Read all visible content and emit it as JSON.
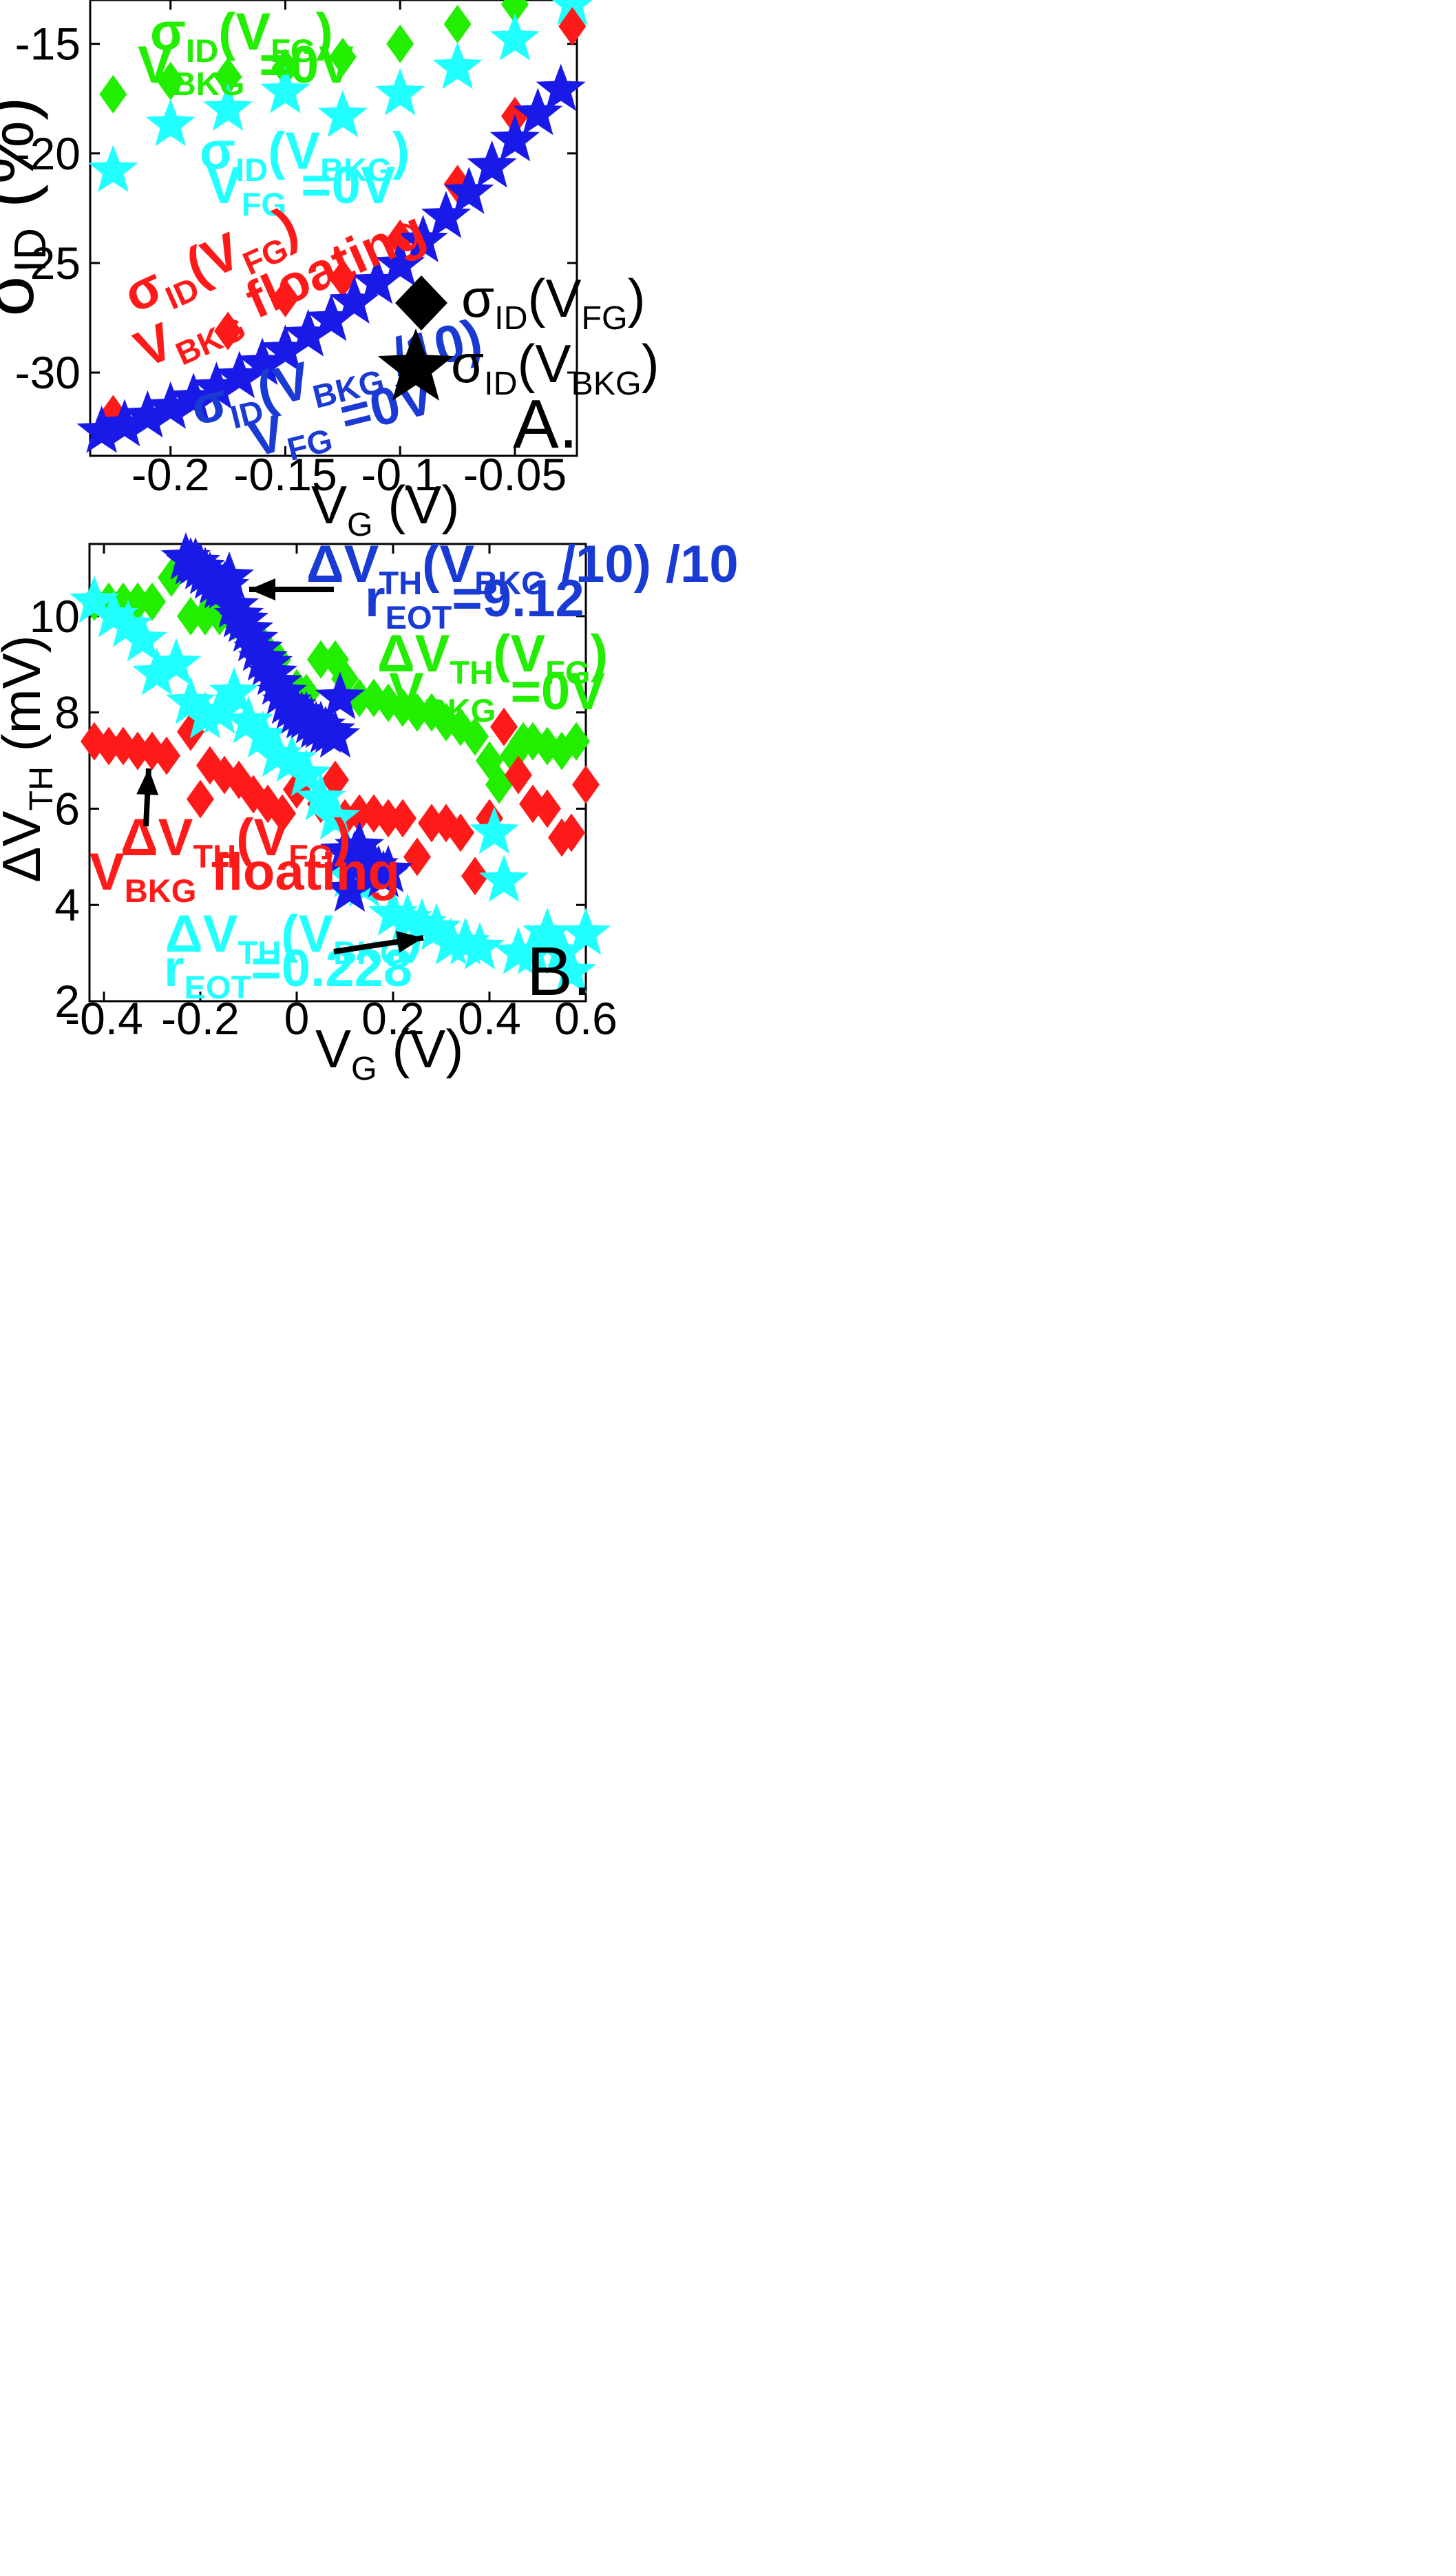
{
  "colors": {
    "green": "#22ee00",
    "cyan": "#22ffff",
    "blue": "#1a1ae8",
    "red": "#ff1a1a",
    "black": "#000000",
    "darkblue_text": "#1a3ad4"
  },
  "chart_data": [
    {
      "id": "A",
      "type": "scatter",
      "panel_label": "A.",
      "xlabel": {
        "main": "V",
        "sub": "G",
        "tail": " (V)"
      },
      "ylabel": {
        "main": "σ",
        "sub": "ID",
        "tail": " (%)"
      },
      "xlim": [
        -0.235,
        -0.023
      ],
      "ylim": [
        -33.8,
        -13.0
      ],
      "xticks": [
        -0.2,
        -0.15,
        -0.1,
        -0.05
      ],
      "xtick_labels": [
        "-0.2",
        "-0.15",
        "-0.1",
        "-0.05"
      ],
      "yticks": [
        -15,
        -20,
        -25,
        -30
      ],
      "ytick_labels": [
        "-15",
        "-20",
        "-25",
        "-30"
      ],
      "series": [
        {
          "name": "σID(VFG) VBKG=0V",
          "marker": "diamond",
          "color": "#22ee00",
          "x": [
            -0.225,
            -0.2,
            -0.175,
            -0.15,
            -0.125,
            -0.1,
            -0.075,
            -0.05
          ],
          "y": [
            -17.3,
            -16.7,
            -16.5,
            -16.1,
            -15.6,
            -15.0,
            -14.1,
            -13.2
          ]
        },
        {
          "name": "σID(VBKG) VFG=0V",
          "marker": "star",
          "color": "#22ffff",
          "x": [
            -0.225,
            -0.2,
            -0.175,
            -0.15,
            -0.125,
            -0.1,
            -0.075,
            -0.05,
            -0.025
          ],
          "y": [
            -20.8,
            -18.7,
            -18.0,
            -17.2,
            -18.3,
            -17.3,
            -16.1,
            -14.8,
            -13.2
          ]
        },
        {
          "name": "σID(VFG) VBKG floating",
          "marker": "diamond",
          "color": "#ff1a1a",
          "x": [
            -0.225,
            -0.175,
            -0.15,
            -0.125,
            -0.1,
            -0.075,
            -0.05,
            -0.025
          ],
          "y": [
            -31.9,
            -28.1,
            -26.6,
            -25.7,
            -23.9,
            -21.4,
            -18.3,
            -14.2
          ]
        },
        {
          "name": "σID(VBKG/10) VFG=0V",
          "marker": "star",
          "color": "#1a1ae8",
          "x": [
            -0.23,
            -0.22,
            -0.21,
            -0.2,
            -0.19,
            -0.18,
            -0.17,
            -0.16,
            -0.15,
            -0.14,
            -0.13,
            -0.12,
            -0.11,
            -0.1,
            -0.09,
            -0.08,
            -0.07,
            -0.06,
            -0.05,
            -0.04,
            -0.03
          ],
          "y": [
            -32.7,
            -32.4,
            -32.0,
            -31.6,
            -31.2,
            -30.7,
            -30.2,
            -29.6,
            -29.0,
            -28.3,
            -27.6,
            -26.8,
            -25.9,
            -25.1,
            -24.0,
            -22.9,
            -21.8,
            -20.6,
            -19.4,
            -18.2,
            -17.1
          ]
        }
      ],
      "legend": [
        {
          "marker": "diamond",
          "label": {
            "main": "σ",
            "sub": "ID",
            "tail": "(V",
            "sub2": "FG",
            "end": ")"
          }
        },
        {
          "marker": "star",
          "label": {
            "main": "σ",
            "sub": "ID",
            "tail": "(V",
            "sub2": "BKG",
            "end": ")"
          }
        }
      ],
      "annotations": {
        "green": {
          "line1": {
            "a": "σ",
            "b": "ID",
            "c": "(V",
            "d": "FG",
            "e": ")"
          },
          "line2": {
            "a": "V",
            "b": "BKG",
            "c": " =0V"
          }
        },
        "cyan": {
          "line1": {
            "a": "σ",
            "b": "ID",
            "c": "(V",
            "d": "BKG",
            "e": ")"
          },
          "line2": {
            "a": "V",
            "b": "FG",
            "c": " =0V"
          }
        },
        "red": {
          "line1": {
            "a": "σ",
            "b": "ID",
            "c": "(V",
            "d": "FG",
            "e": ")"
          },
          "line2": {
            "a": "V",
            "b": "BKG",
            "c": " floating"
          }
        },
        "blue": {
          "line1": {
            "a": "σ",
            "b": "ID",
            "c": "(V",
            "d": "BKG",
            "e": " /10)"
          },
          "line2": {
            "a": "V",
            "b": "FG",
            "c": " =0V"
          }
        }
      }
    },
    {
      "id": "B",
      "type": "scatter",
      "panel_label": "B.",
      "xlabel": {
        "main": "V",
        "sub": "G",
        "tail": " (V)"
      },
      "ylabel": {
        "main": "ΔV",
        "sub": "TH",
        "tail": " (mV)"
      },
      "xlim": [
        -0.43,
        0.6
      ],
      "ylim": [
        2.0,
        11.5
      ],
      "xticks": [
        -0.4,
        -0.2,
        0,
        0.2,
        0.4,
        0.6
      ],
      "xtick_labels": [
        "-0.4",
        "-0.2",
        "0",
        "0.2",
        "0.4",
        "0.6"
      ],
      "yticks": [
        2,
        4,
        6,
        8,
        10
      ],
      "ytick_labels": [
        "2",
        "4",
        "6",
        "8",
        "10"
      ],
      "series": [
        {
          "name": "ΔVTH(VFG) VBKG=0V",
          "marker": "diamond",
          "color": "#22ee00",
          "x": [
            -0.42,
            -0.39,
            -0.36,
            -0.33,
            -0.3,
            -0.26,
            -0.22,
            -0.19,
            -0.16,
            -0.13,
            -0.1,
            -0.07,
            -0.04,
            0.0,
            0.02,
            0.05,
            0.08,
            0.1,
            0.13,
            0.16,
            0.19,
            0.22,
            0.25,
            0.28,
            0.31,
            0.34,
            0.37,
            0.4,
            0.42,
            0.45,
            0.47,
            0.49,
            0.52,
            0.55,
            0.58
          ],
          "y": [
            10.3,
            10.3,
            10.3,
            10.3,
            10.3,
            10.8,
            10.0,
            10.0,
            10.0,
            9.9,
            9.7,
            9.4,
            9.1,
            8.5,
            8.4,
            9.1,
            9.1,
            8.7,
            8.3,
            8.3,
            8.2,
            8.1,
            8.0,
            8.0,
            7.8,
            7.7,
            7.5,
            7.0,
            6.5,
            7.1,
            7.4,
            7.4,
            7.3,
            7.2,
            7.4
          ]
        },
        {
          "name": "ΔVTH(VFG) VBKG floating",
          "marker": "diamond",
          "color": "#ff1a1a",
          "x": [
            -0.42,
            -0.39,
            -0.36,
            -0.33,
            -0.3,
            -0.27,
            -0.22,
            -0.2,
            -0.18,
            -0.15,
            -0.12,
            -0.09,
            -0.06,
            -0.03,
            0.0,
            0.05,
            0.08,
            0.1,
            0.13,
            0.16,
            0.19,
            0.22,
            0.25,
            0.28,
            0.31,
            0.34,
            0.37,
            0.4,
            0.43,
            0.46,
            0.49,
            0.52,
            0.55,
            0.57,
            0.6
          ],
          "y": [
            7.4,
            7.3,
            7.3,
            7.2,
            7.2,
            7.1,
            7.6,
            6.2,
            6.9,
            6.7,
            6.6,
            6.3,
            6.1,
            5.9,
            6.4,
            6.1,
            6.6,
            5.8,
            5.9,
            5.9,
            5.8,
            5.8,
            5.0,
            5.7,
            5.7,
            5.5,
            4.6,
            5.8,
            7.7,
            6.7,
            6.1,
            6.0,
            5.4,
            5.5,
            6.5
          ]
        },
        {
          "name": "ΔVTH(VBKG) rEOT=0.228",
          "marker": "star",
          "color": "#22ffff",
          "x": [
            -0.42,
            -0.38,
            -0.35,
            -0.32,
            -0.29,
            -0.25,
            -0.22,
            -0.19,
            -0.16,
            -0.13,
            -0.1,
            -0.07,
            -0.04,
            -0.01,
            0.02,
            0.05,
            0.08,
            0.11,
            0.14,
            0.17,
            0.2,
            0.23,
            0.26,
            0.29,
            0.32,
            0.35,
            0.38,
            0.41,
            0.43,
            0.46,
            0.49,
            0.52,
            0.55,
            0.57,
            0.6
          ],
          "y": [
            10.3,
            10.0,
            9.8,
            9.5,
            8.8,
            9.0,
            8.2,
            7.9,
            8.0,
            8.4,
            7.8,
            7.5,
            7.1,
            7.0,
            6.7,
            6.2,
            5.8,
            4.6,
            4.4,
            4.7,
            3.8,
            3.7,
            3.6,
            3.5,
            3.2,
            3.2,
            3.1,
            5.5,
            4.5,
            3.0,
            3.0,
            3.4,
            3.0,
            2.6,
            3.4
          ]
        },
        {
          "name": "ΔVTH(VBKG/10)/10 rEOT=9.12",
          "marker": "star",
          "color": "#1a1ae8",
          "x": [
            -0.23,
            -0.22,
            -0.21,
            -0.2,
            -0.19,
            -0.18,
            -0.17,
            -0.16,
            -0.15,
            -0.14,
            -0.13,
            -0.12,
            -0.11,
            -0.1,
            -0.09,
            -0.08,
            -0.07,
            -0.06,
            -0.05,
            -0.04,
            -0.03,
            -0.02,
            -0.01,
            0.0,
            0.01,
            0.02,
            0.03,
            0.04,
            0.05,
            0.06,
            0.07,
            0.08,
            0.09,
            0.1,
            0.11,
            0.12,
            0.13,
            0.14,
            0.15,
            0.16,
            0.17,
            0.18,
            0.19
          ],
          "y": [
            11.2,
            11.1,
            11.1,
            11.0,
            10.9,
            10.8,
            10.7,
            10.6,
            10.6,
            10.8,
            10.2,
            10.0,
            9.9,
            9.7,
            9.5,
            9.3,
            9.1,
            9.0,
            8.8,
            8.6,
            8.4,
            8.2,
            8.1,
            8.0,
            7.9,
            7.9,
            7.8,
            7.7,
            7.7,
            7.6,
            7.6,
            7.5,
            8.3,
            5.1,
            4.3,
            5.0,
            5.2,
            4.9,
            4.8,
            4.8,
            4.7,
            4.6,
            4.7
          ]
        }
      ],
      "annotations": {
        "blue": {
          "line1": {
            "a": "ΔV",
            "b": "TH",
            "c": "(V",
            "d": "BKG",
            "e": " /10) /10"
          },
          "line2": {
            "a": "r",
            "b": "EOT",
            "c": "=9.12"
          }
        },
        "green": {
          "line1": {
            "a": "ΔV",
            "b": "TH",
            "c": "(V",
            "d": "FG",
            "e": ")"
          },
          "line2": {
            "a": "V",
            "b": "BKG",
            "c": " =0V"
          }
        },
        "red": {
          "line1": {
            "a": "ΔV",
            "b": "TH",
            "c": "(V",
            "d": "FG",
            "e": ")"
          },
          "line2": {
            "a": "V",
            "b": "BKG",
            "c": " floating"
          }
        },
        "cyan": {
          "line1": {
            "a": "ΔV",
            "b": "TH",
            "c": "(V",
            "d": "BKG",
            "e": ")"
          },
          "line2": {
            "a": "r",
            "b": "EOT",
            "c": "=0.228"
          }
        }
      }
    }
  ]
}
